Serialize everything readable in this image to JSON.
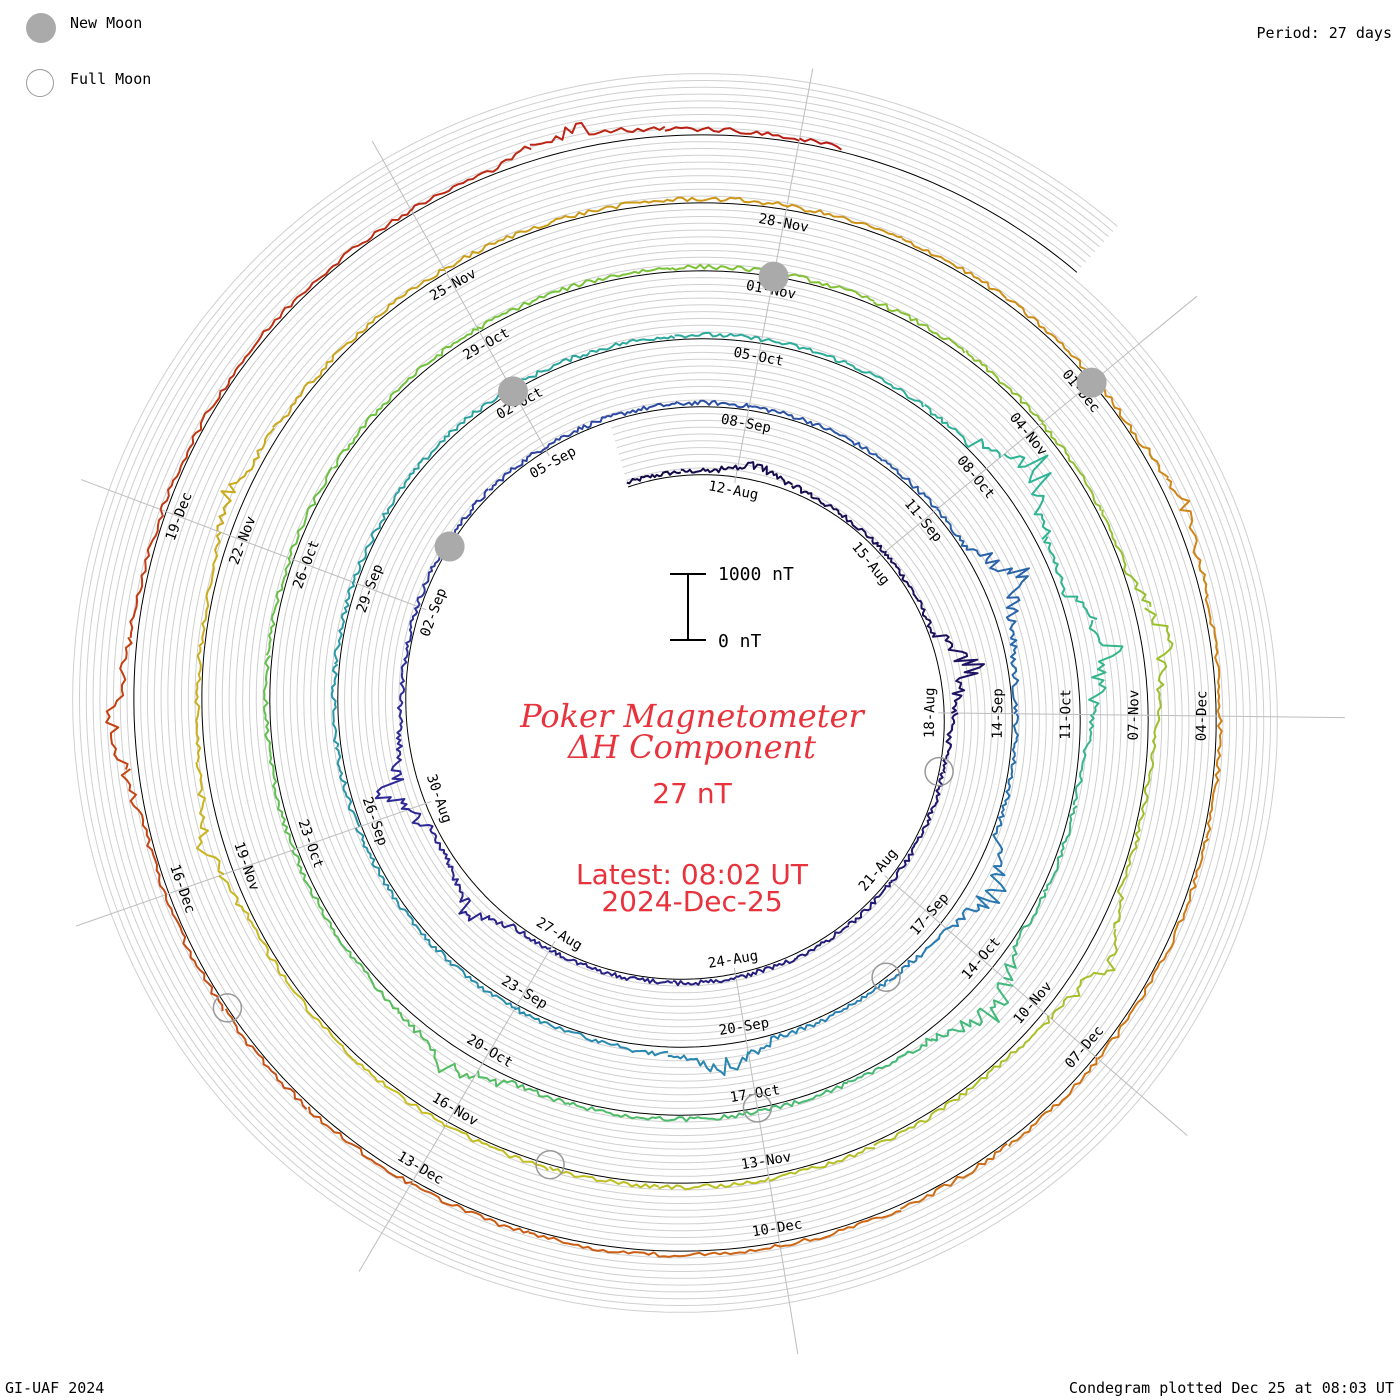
{
  "legend": {
    "new_moon_label": "New Moon",
    "full_moon_label": "Full Moon",
    "new_moon_color": "#aaaaaa",
    "full_moon_color": "#999999"
  },
  "period_label": "Period: 27 days",
  "footer_left": "GI-UAF 2024",
  "footer_right": "Condegram plotted Dec 25 at 08:03 UT",
  "title_line1": "Poker Magnetometer",
  "title_line2": "ΔH Component",
  "scale_value": "27 nT",
  "latest_line1": "Latest: 08:02 UT",
  "latest_line2": "2024-Dec-25",
  "scale_bar": {
    "top_label": "1000 nT",
    "bottom_label": "0 nT"
  },
  "title_color": "#e8323c",
  "chart_data": {
    "type": "condegram",
    "period_days": 27,
    "start_date": "2024-08-10",
    "end_date": "2024-12-25",
    "date_labels": [
      "12-Aug",
      "15-Aug",
      "18-Aug",
      "21-Aug",
      "24-Aug",
      "27-Aug",
      "30-Aug",
      "02-Sep",
      "05-Sep",
      "08-Sep",
      "11-Sep",
      "14-Sep",
      "17-Sep",
      "20-Sep",
      "23-Sep",
      "26-Sep",
      "29-Sep",
      "02-Oct",
      "05-Oct",
      "08-Oct",
      "11-Oct",
      "14-Oct",
      "17-Oct",
      "20-Oct",
      "23-Oct",
      "26-Oct",
      "29-Oct",
      "01-Nov",
      "04-Nov",
      "07-Nov",
      "10-Nov",
      "13-Nov",
      "16-Nov",
      "19-Nov",
      "22-Nov",
      "25-Nov",
      "28-Nov",
      "01-Dec",
      "04-Dec",
      "07-Dec",
      "10-Dec",
      "13-Dec",
      "16-Dec",
      "19-Dec"
    ],
    "new_moons": [
      "2024-09-03",
      "2024-10-02",
      "2024-11-01",
      "2024-12-01"
    ],
    "full_moons": [
      "2024-08-19",
      "2024-09-18",
      "2024-10-17",
      "2024-11-15",
      "2024-12-15"
    ],
    "y_unit": "nT",
    "disturbance_events": [
      {
        "date": "2024-08-12",
        "peak_nT": 300
      },
      {
        "date": "2024-08-17",
        "peak_nT": 700
      },
      {
        "date": "2024-08-28",
        "peak_nT": 450
      },
      {
        "date": "2024-08-30",
        "peak_nT": 700
      },
      {
        "date": "2024-09-12",
        "peak_nT": 800
      },
      {
        "date": "2024-09-16",
        "peak_nT": 700
      },
      {
        "date": "2024-09-20",
        "peak_nT": 500
      },
      {
        "date": "2024-10-08",
        "peak_nT": 900
      },
      {
        "date": "2024-10-10",
        "peak_nT": 1000
      },
      {
        "date": "2024-10-14",
        "peak_nT": 700
      },
      {
        "date": "2024-10-20",
        "peak_nT": 450
      },
      {
        "date": "2024-11-06",
        "peak_nT": 600
      },
      {
        "date": "2024-11-09",
        "peak_nT": 500
      },
      {
        "date": "2024-11-19",
        "peak_nT": 350
      },
      {
        "date": "2024-11-22",
        "peak_nT": 300
      },
      {
        "date": "2024-12-02",
        "peak_nT": 250
      },
      {
        "date": "2024-12-17",
        "peak_nT": 450
      },
      {
        "date": "2024-12-23",
        "peak_nT": 400
      }
    ]
  }
}
